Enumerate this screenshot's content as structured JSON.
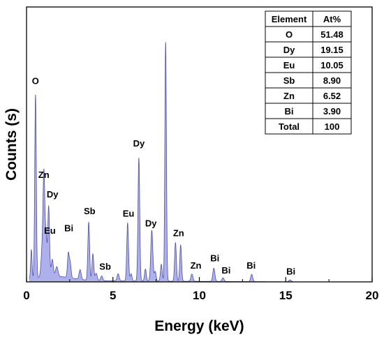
{
  "chart_data": {
    "type": "area",
    "xlabel": "Energy (keV)",
    "ylabel": "Counts (s)",
    "xlim": [
      0,
      20
    ],
    "ylim": [
      0,
      100
    ],
    "x_ticks": [
      "0",
      "5",
      "10",
      "15",
      "20"
    ],
    "colors": {
      "fill": "#aeb0ec",
      "line": "#4b4fae",
      "axis": "#000000"
    },
    "baseline_level": 0.6,
    "peaks": [
      {
        "x": 0.28,
        "h": 12,
        "w": 0.04
      },
      {
        "x": 0.52,
        "h": 76,
        "w": 0.045
      },
      {
        "x": 0.92,
        "h": 13,
        "w": 0.07
      },
      {
        "x": 1.01,
        "h": 38,
        "w": 0.05
      },
      {
        "x": 1.13,
        "h": 17,
        "w": 0.05
      },
      {
        "x": 1.28,
        "h": 29,
        "w": 0.05
      },
      {
        "x": 1.49,
        "h": 7,
        "w": 0.06
      },
      {
        "x": 1.75,
        "h": 4,
        "w": 0.07
      },
      {
        "x": 2.42,
        "h": 10,
        "w": 0.05
      },
      {
        "x": 2.53,
        "h": 6,
        "w": 0.05
      },
      {
        "x": 3.1,
        "h": 4,
        "w": 0.06
      },
      {
        "x": 3.6,
        "h": 24,
        "w": 0.05
      },
      {
        "x": 3.84,
        "h": 11,
        "w": 0.05
      },
      {
        "x": 4.03,
        "h": 3,
        "w": 0.06
      },
      {
        "x": 4.35,
        "h": 2,
        "w": 0.06
      },
      {
        "x": 5.3,
        "h": 3,
        "w": 0.06
      },
      {
        "x": 5.85,
        "h": 24,
        "w": 0.05
      },
      {
        "x": 6.05,
        "h": 3,
        "w": 0.05
      },
      {
        "x": 6.5,
        "h": 51,
        "w": 0.05
      },
      {
        "x": 6.88,
        "h": 5,
        "w": 0.05
      },
      {
        "x": 7.25,
        "h": 21,
        "w": 0.06
      },
      {
        "x": 7.45,
        "h": 4,
        "w": 0.05
      },
      {
        "x": 7.8,
        "h": 7,
        "w": 0.05
      },
      {
        "x": 8.05,
        "h": 99,
        "w": 0.045
      },
      {
        "x": 8.62,
        "h": 16,
        "w": 0.05
      },
      {
        "x": 8.92,
        "h": 15,
        "w": 0.05
      },
      {
        "x": 9.57,
        "h": 3,
        "w": 0.06
      },
      {
        "x": 10.84,
        "h": 5.5,
        "w": 0.06
      },
      {
        "x": 11.37,
        "h": 1.5,
        "w": 0.06
      },
      {
        "x": 13.03,
        "h": 3,
        "w": 0.06
      },
      {
        "x": 15.25,
        "h": 0.8,
        "w": 0.07
      }
    ],
    "annotations": [
      {
        "text": "O",
        "x": 0.52,
        "y": 82
      },
      {
        "text": "Zn",
        "x": 1.0,
        "y": 43
      },
      {
        "text": "Dy",
        "x": 1.5,
        "y": 35
      },
      {
        "text": "Eu",
        "x": 1.35,
        "y": 20
      },
      {
        "text": "Bi",
        "x": 2.45,
        "y": 21
      },
      {
        "text": "Sb",
        "x": 3.65,
        "y": 28
      },
      {
        "text": "Sb",
        "x": 4.55,
        "y": 5
      },
      {
        "text": "Eu",
        "x": 5.9,
        "y": 27
      },
      {
        "text": "Dy",
        "x": 6.5,
        "y": 56
      },
      {
        "text": "Dy",
        "x": 7.2,
        "y": 23
      },
      {
        "text": "Zn",
        "x": 8.8,
        "y": 19
      },
      {
        "text": "Zn",
        "x": 9.8,
        "y": 5.5
      },
      {
        "text": "Bi",
        "x": 10.9,
        "y": 8.5
      },
      {
        "text": "Bi",
        "x": 11.55,
        "y": 3.5
      },
      {
        "text": "Bi",
        "x": 13.0,
        "y": 5.5
      },
      {
        "text": "Bi",
        "x": 15.3,
        "y": 3
      }
    ],
    "table": {
      "headers": [
        "Element",
        "At%"
      ],
      "rows": [
        [
          "O",
          "51.48"
        ],
        [
          "Dy",
          "19.15"
        ],
        [
          "Eu",
          "10.05"
        ],
        [
          "Sb",
          "8.90"
        ],
        [
          "Zn",
          "6.52"
        ],
        [
          "Bi",
          "3.90"
        ],
        [
          "Total",
          "100"
        ]
      ]
    }
  }
}
